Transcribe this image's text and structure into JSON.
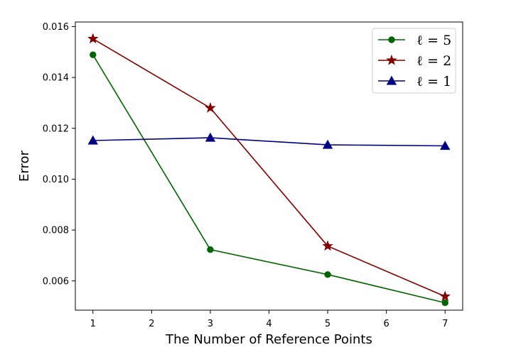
{
  "chart_data": {
    "type": "line",
    "title": "",
    "xlabel": "The Number of Reference Points",
    "ylabel": "Error",
    "xlim": [
      0.7,
      7.3
    ],
    "ylim": [
      0.00485,
      0.01618
    ],
    "x_ticks": [
      1,
      2,
      3,
      4,
      5,
      6,
      7
    ],
    "y_ticks": [
      0.006,
      0.008,
      0.01,
      0.012,
      0.014,
      0.016
    ],
    "y_tick_labels": [
      "0.006",
      "0.008",
      "0.010",
      "0.012",
      "0.014",
      "0.016"
    ],
    "grid": false,
    "legend_position": "top-right",
    "series": [
      {
        "name": "ℓ = 5",
        "color": "#006400",
        "marker": "circle",
        "x": [
          1,
          3,
          5,
          7
        ],
        "y": [
          0.01489,
          0.00723,
          0.00625,
          0.00514
        ]
      },
      {
        "name": "ℓ = 2",
        "color": "#800000",
        "marker": "star",
        "x": [
          1,
          3,
          5,
          7
        ],
        "y": [
          0.01552,
          0.0128,
          0.00737,
          0.00539
        ]
      },
      {
        "name": "ℓ = 1",
        "color": "#000080",
        "marker": "triangle",
        "x": [
          1,
          3,
          5,
          7
        ],
        "y": [
          0.01152,
          0.01163,
          0.01135,
          0.01131
        ]
      }
    ]
  }
}
